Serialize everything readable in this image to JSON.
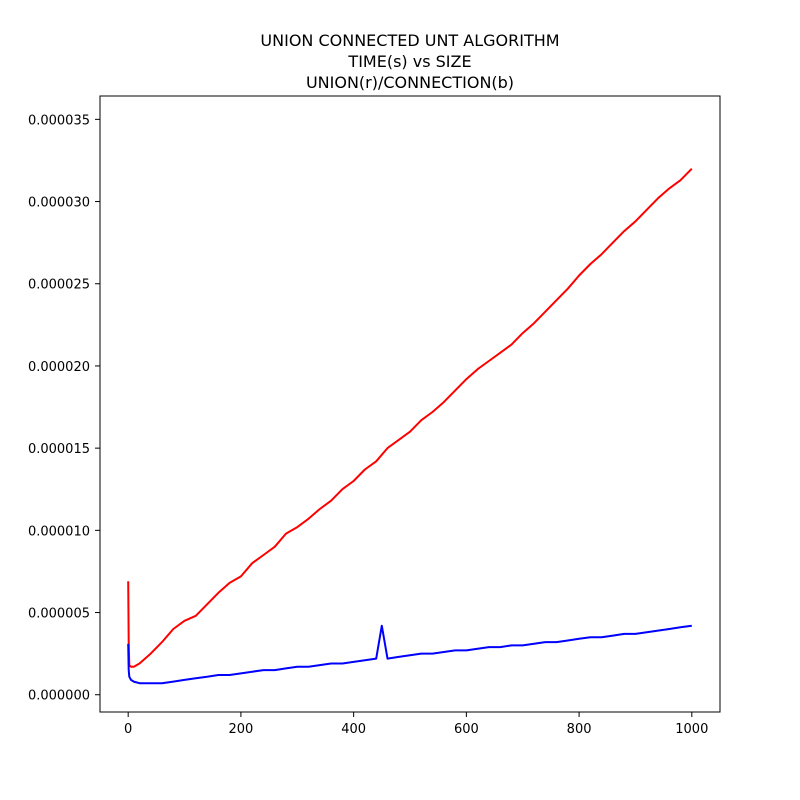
{
  "chart_data": {
    "type": "line",
    "title_lines": [
      "UNION CONNECTED UNT ALGORITHM",
      "TIME(s) vs SIZE",
      "UNION(r)/CONNECTION(b)"
    ],
    "xlabel": "",
    "ylabel": "",
    "xlim": [
      -50,
      1050
    ],
    "ylim": [
      -1.05e-06,
      3.642e-05
    ],
    "x_ticks": [
      0,
      200,
      400,
      600,
      800,
      1000
    ],
    "x_tick_labels": [
      "0",
      "200",
      "400",
      "600",
      "800",
      "1000"
    ],
    "y_ticks": [
      0,
      5e-06,
      1e-05,
      1.5e-05,
      2e-05,
      2.5e-05,
      3e-05,
      3.5e-05
    ],
    "y_tick_labels": [
      "0.000000",
      "0.000005",
      "0.000010",
      "0.000015",
      "0.000020",
      "0.000025",
      "0.000030",
      "0.000035"
    ],
    "grid": false,
    "legend": "none",
    "series": [
      {
        "color": "#ff0000",
        "x": [
          0,
          1,
          2,
          5,
          10,
          20,
          40,
          60,
          80,
          100,
          120,
          140,
          160,
          180,
          200,
          220,
          240,
          260,
          280,
          300,
          320,
          340,
          360,
          380,
          400,
          420,
          440,
          460,
          480,
          500,
          520,
          540,
          560,
          580,
          600,
          620,
          640,
          660,
          680,
          700,
          720,
          740,
          760,
          780,
          800,
          820,
          840,
          860,
          880,
          900,
          920,
          940,
          960,
          980,
          1000
        ],
        "y": [
          6.9e-06,
          3.2e-06,
          1.8e-06,
          1.7e-06,
          1.7e-06,
          1.9e-06,
          2.5e-06,
          3.2e-06,
          4e-06,
          4.5e-06,
          4.8e-06,
          5.5e-06,
          6.2e-06,
          6.8e-06,
          7.2e-06,
          8e-06,
          8.5e-06,
          9e-06,
          9.8e-06,
          1.02e-05,
          1.07e-05,
          1.13e-05,
          1.18e-05,
          1.25e-05,
          1.3e-05,
          1.37e-05,
          1.42e-05,
          1.5e-05,
          1.55e-05,
          1.6e-05,
          1.67e-05,
          1.72e-05,
          1.78e-05,
          1.85e-05,
          1.92e-05,
          1.98e-05,
          2.03e-05,
          2.08e-05,
          2.13e-05,
          2.2e-05,
          2.26e-05,
          2.33e-05,
          2.4e-05,
          2.47e-05,
          2.55e-05,
          2.62e-05,
          2.68e-05,
          2.75e-05,
          2.82e-05,
          2.88e-05,
          2.95e-05,
          3.02e-05,
          3.08e-05,
          3.13e-05,
          3.2e-05
        ]
      },
      {
        "color": "#0000ff",
        "x": [
          0,
          1,
          2,
          5,
          10,
          20,
          40,
          60,
          80,
          100,
          120,
          140,
          160,
          180,
          200,
          220,
          240,
          260,
          280,
          300,
          320,
          340,
          360,
          380,
          400,
          420,
          440,
          450,
          460,
          480,
          500,
          520,
          540,
          560,
          580,
          600,
          620,
          640,
          660,
          680,
          700,
          720,
          740,
          760,
          780,
          800,
          820,
          840,
          860,
          880,
          900,
          920,
          940,
          960,
          980,
          1000
        ],
        "y": [
          3.1e-06,
          1.5e-06,
          1.1e-06,
          9e-07,
          8e-07,
          7e-07,
          7e-07,
          7e-07,
          8e-07,
          9e-07,
          1e-06,
          1.1e-06,
          1.2e-06,
          1.2e-06,
          1.3e-06,
          1.4e-06,
          1.5e-06,
          1.5e-06,
          1.6e-06,
          1.7e-06,
          1.7e-06,
          1.8e-06,
          1.9e-06,
          1.9e-06,
          2e-06,
          2.1e-06,
          2.2e-06,
          4.2e-06,
          2.2e-06,
          2.3e-06,
          2.4e-06,
          2.5e-06,
          2.5e-06,
          2.6e-06,
          2.7e-06,
          2.7e-06,
          2.8e-06,
          2.9e-06,
          2.9e-06,
          3e-06,
          3e-06,
          3.1e-06,
          3.2e-06,
          3.2e-06,
          3.3e-06,
          3.4e-06,
          3.5e-06,
          3.5e-06,
          3.6e-06,
          3.7e-06,
          3.7e-06,
          3.8e-06,
          3.9e-06,
          4e-06,
          4.1e-06,
          4.2e-06
        ]
      }
    ]
  }
}
